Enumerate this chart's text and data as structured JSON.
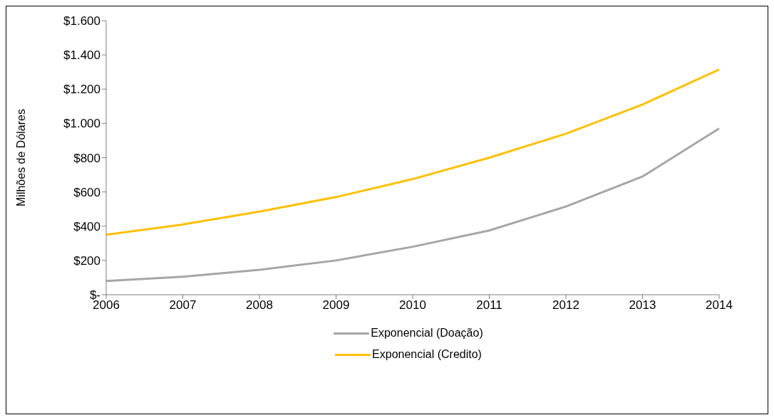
{
  "chart_data": {
    "type": "line",
    "ylabel": "Milhões de Dólares",
    "categories": [
      "2006",
      "2007",
      "2008",
      "2009",
      "2010",
      "2011",
      "2012",
      "2013",
      "2014"
    ],
    "series": [
      {
        "name": "Exponencial (Doação)",
        "color": "#a6a6a6",
        "values": [
          80,
          105,
          145,
          200,
          280,
          375,
          515,
          690,
          970
        ]
      },
      {
        "name": "Exponencial (Credito)",
        "color": "#ffc000",
        "values": [
          350,
          410,
          485,
          570,
          675,
          800,
          940,
          1110,
          1315
        ]
      }
    ],
    "ylim": [
      0,
      1600
    ],
    "yticks": [
      {
        "value": 0,
        "label": "$-"
      },
      {
        "value": 200,
        "label": "$200"
      },
      {
        "value": 400,
        "label": "$400"
      },
      {
        "value": 600,
        "label": "$600"
      },
      {
        "value": 800,
        "label": "$800"
      },
      {
        "value": 1000,
        "label": "$1.000"
      },
      {
        "value": 1200,
        "label": "$1.200"
      },
      {
        "value": 1400,
        "label": "$1.400"
      },
      {
        "value": 1600,
        "label": "$1.600"
      }
    ],
    "grid": false,
    "legend": "bottom",
    "marker": "none",
    "line_style": "solid"
  }
}
